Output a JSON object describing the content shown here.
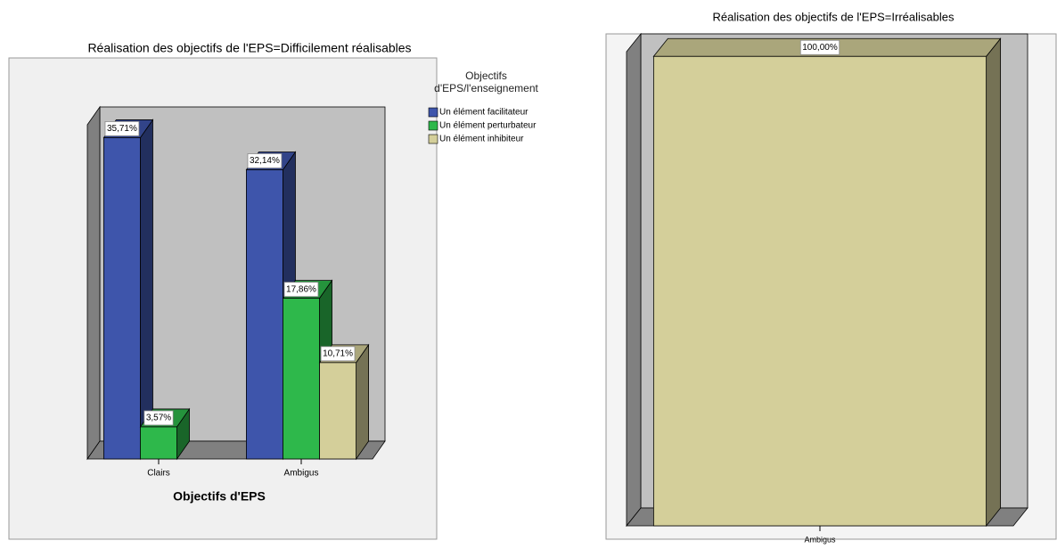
{
  "chart_data": [
    {
      "type": "bar",
      "title": "Réalisation des objectifs de l'EPS=Difficilement réalisables",
      "x_label": "Objectifs d'EPS",
      "legend_title": "Objectifs d'EPS/l'enseignement",
      "categories": [
        "Clairs",
        "Ambigus"
      ],
      "series": [
        {
          "name": "Un élément facilitateur",
          "color": "#3e55ab",
          "values": [
            35.71,
            32.14
          ],
          "value_labels": [
            "35,71%",
            "32,14%"
          ]
        },
        {
          "name": "Un élément perturbateur",
          "color": "#2eb84b",
          "values": [
            3.57,
            17.86
          ],
          "value_labels": [
            "3,57%",
            "17,86%"
          ]
        },
        {
          "name": "Un élément inhibiteur",
          "color": "#d4cf9a",
          "values": [
            null,
            10.71
          ],
          "value_labels": [
            null,
            "10,71%"
          ]
        }
      ]
    },
    {
      "type": "bar",
      "title": "Réalisation des objectifs de l'EPS=Irréalisables",
      "categories": [
        "Ambigus"
      ],
      "series": [
        {
          "color": "#d4cf9a",
          "values": [
            100
          ],
          "value_labels": [
            "100,00%"
          ]
        }
      ]
    }
  ]
}
